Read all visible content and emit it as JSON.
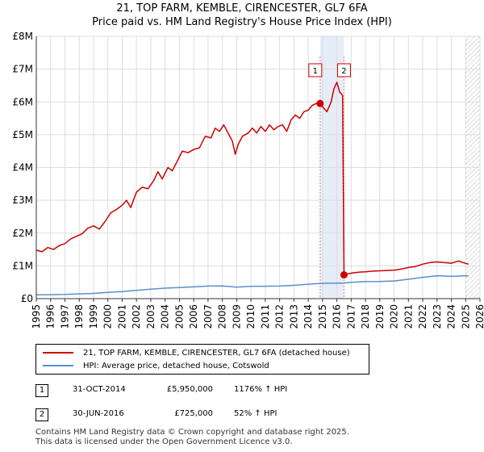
{
  "chart_data": {
    "type": "line",
    "title": "21, TOP FARM, KEMBLE, CIRENCESTER, GL7 6FA",
    "subtitle": "Price paid vs. HM Land Registry's House Price Index (HPI)",
    "xlim": [
      1995,
      2026
    ],
    "ylim": [
      0,
      8000000
    ],
    "x_ticks": [
      "1995",
      "1996",
      "1997",
      "1998",
      "1999",
      "2000",
      "2001",
      "2002",
      "2003",
      "2004",
      "2005",
      "2006",
      "2007",
      "2008",
      "2009",
      "2010",
      "2011",
      "2012",
      "2013",
      "2014",
      "2015",
      "2016",
      "2017",
      "2018",
      "2019",
      "2020",
      "2021",
      "2022",
      "2023",
      "2024",
      "2025",
      "2026"
    ],
    "y_ticks": [
      {
        "value": 0,
        "label": "£0"
      },
      {
        "value": 1000000,
        "label": "£1M"
      },
      {
        "value": 2000000,
        "label": "£2M"
      },
      {
        "value": 3000000,
        "label": "£3M"
      },
      {
        "value": 4000000,
        "label": "£4M"
      },
      {
        "value": 5000000,
        "label": "£5M"
      },
      {
        "value": 6000000,
        "label": "£6M"
      },
      {
        "value": 7000000,
        "label": "£7M"
      },
      {
        "value": 8000000,
        "label": "£8M"
      }
    ],
    "highlight_span": [
      2014.83,
      2016.5
    ],
    "hatched_region_start": 2025.0,
    "series": [
      {
        "name": "21, TOP FARM, KEMBLE, CIRENCESTER, GL7 6FA (detached house)",
        "color": "#cc0000",
        "points": [
          [
            1995.0,
            1480000
          ],
          [
            1995.4,
            1430000
          ],
          [
            1995.8,
            1560000
          ],
          [
            1996.2,
            1500000
          ],
          [
            1996.6,
            1620000
          ],
          [
            1997.0,
            1680000
          ],
          [
            1997.4,
            1820000
          ],
          [
            1997.8,
            1900000
          ],
          [
            1998.2,
            1980000
          ],
          [
            1998.6,
            2150000
          ],
          [
            1999.0,
            2220000
          ],
          [
            1999.4,
            2120000
          ],
          [
            1999.8,
            2350000
          ],
          [
            2000.2,
            2620000
          ],
          [
            2000.6,
            2720000
          ],
          [
            2001.0,
            2850000
          ],
          [
            2001.3,
            3000000
          ],
          [
            2001.6,
            2780000
          ],
          [
            2002.0,
            3250000
          ],
          [
            2002.4,
            3400000
          ],
          [
            2002.8,
            3350000
          ],
          [
            2003.2,
            3600000
          ],
          [
            2003.5,
            3870000
          ],
          [
            2003.8,
            3650000
          ],
          [
            2004.2,
            4000000
          ],
          [
            2004.5,
            3900000
          ],
          [
            2004.8,
            4150000
          ],
          [
            2005.2,
            4500000
          ],
          [
            2005.6,
            4450000
          ],
          [
            2006.0,
            4550000
          ],
          [
            2006.4,
            4600000
          ],
          [
            2006.8,
            4950000
          ],
          [
            2007.2,
            4900000
          ],
          [
            2007.5,
            5200000
          ],
          [
            2007.8,
            5100000
          ],
          [
            2008.1,
            5300000
          ],
          [
            2008.4,
            5050000
          ],
          [
            2008.7,
            4800000
          ],
          [
            2008.9,
            4400000
          ],
          [
            2009.1,
            4700000
          ],
          [
            2009.4,
            4950000
          ],
          [
            2009.8,
            5050000
          ],
          [
            2010.1,
            5200000
          ],
          [
            2010.4,
            5050000
          ],
          [
            2010.7,
            5250000
          ],
          [
            2011.0,
            5100000
          ],
          [
            2011.3,
            5300000
          ],
          [
            2011.6,
            5150000
          ],
          [
            2011.9,
            5250000
          ],
          [
            2012.2,
            5300000
          ],
          [
            2012.5,
            5100000
          ],
          [
            2012.8,
            5450000
          ],
          [
            2013.1,
            5600000
          ],
          [
            2013.4,
            5500000
          ],
          [
            2013.7,
            5700000
          ],
          [
            2014.0,
            5750000
          ],
          [
            2014.3,
            5900000
          ],
          [
            2014.6,
            5960000
          ],
          [
            2014.83,
            5950000
          ],
          [
            2015.0,
            5850000
          ],
          [
            2015.3,
            5700000
          ],
          [
            2015.6,
            6000000
          ],
          [
            2015.8,
            6400000
          ],
          [
            2016.0,
            6600000
          ],
          [
            2016.2,
            6300000
          ],
          [
            2016.4,
            6200000
          ],
          [
            2016.5,
            725000
          ],
          [
            2016.8,
            760000
          ],
          [
            2017.2,
            790000
          ],
          [
            2017.6,
            810000
          ],
          [
            2018.0,
            820000
          ],
          [
            2018.5,
            840000
          ],
          [
            2019.0,
            850000
          ],
          [
            2019.5,
            860000
          ],
          [
            2020.0,
            870000
          ],
          [
            2020.5,
            900000
          ],
          [
            2021.0,
            950000
          ],
          [
            2021.5,
            980000
          ],
          [
            2022.0,
            1050000
          ],
          [
            2022.5,
            1100000
          ],
          [
            2023.0,
            1120000
          ],
          [
            2023.5,
            1100000
          ],
          [
            2024.0,
            1080000
          ],
          [
            2024.5,
            1150000
          ],
          [
            2024.8,
            1100000
          ],
          [
            2025.2,
            1050000
          ]
        ]
      },
      {
        "name": "HPI: Average price, detached house, Cotswold",
        "color": "#5b8fc9",
        "points": [
          [
            1995.0,
            116000
          ],
          [
            1996.0,
            120000
          ],
          [
            1997.0,
            128000
          ],
          [
            1998.0,
            145000
          ],
          [
            1999.0,
            160000
          ],
          [
            2000.0,
            190000
          ],
          [
            2001.0,
            215000
          ],
          [
            2002.0,
            250000
          ],
          [
            2003.0,
            290000
          ],
          [
            2004.0,
            320000
          ],
          [
            2005.0,
            340000
          ],
          [
            2006.0,
            360000
          ],
          [
            2007.0,
            385000
          ],
          [
            2008.0,
            390000
          ],
          [
            2009.0,
            350000
          ],
          [
            2010.0,
            375000
          ],
          [
            2011.0,
            380000
          ],
          [
            2012.0,
            385000
          ],
          [
            2013.0,
            405000
          ],
          [
            2014.0,
            440000
          ],
          [
            2014.83,
            466000
          ],
          [
            2015.5,
            470000
          ],
          [
            2016.5,
            477000
          ],
          [
            2017.0,
            500000
          ],
          [
            2018.0,
            520000
          ],
          [
            2019.0,
            525000
          ],
          [
            2020.0,
            540000
          ],
          [
            2021.0,
            590000
          ],
          [
            2022.0,
            650000
          ],
          [
            2023.0,
            700000
          ],
          [
            2024.0,
            680000
          ],
          [
            2025.0,
            700000
          ],
          [
            2025.2,
            690000
          ]
        ]
      }
    ],
    "sales": [
      {
        "id": "1",
        "x": 2014.83,
        "value": 5950000
      },
      {
        "id": "2",
        "x": 2016.5,
        "value": 725000
      }
    ]
  },
  "legend": {
    "items": [
      {
        "label": "21, TOP FARM, KEMBLE, CIRENCESTER, GL7 6FA (detached house)",
        "color": "#cc0000"
      },
      {
        "label": "HPI: Average price, detached house, Cotswold",
        "color": "#5b8fc9"
      }
    ]
  },
  "annotations": [
    {
      "id": "1",
      "date": "31-OCT-2014",
      "price": "£5,950,000",
      "hpi": "1176% ↑ HPI"
    },
    {
      "id": "2",
      "date": "30-JUN-2016",
      "price": "£725,000",
      "hpi": "52% ↑ HPI"
    }
  ],
  "footer": {
    "line1": "Contains HM Land Registry data © Crown copyright and database right 2025.",
    "line2": "This data is licensed under the Open Government Licence v3.0."
  }
}
